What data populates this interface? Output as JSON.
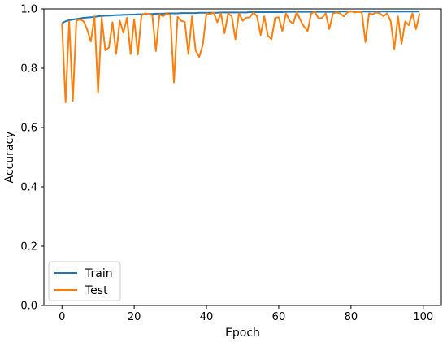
{
  "chart_data": {
    "type": "line",
    "title": "",
    "xlabel": "Epoch",
    "ylabel": "Accuracy",
    "xlim": [
      -5,
      105
    ],
    "ylim": [
      0.0,
      1.0
    ],
    "xticks": [
      0,
      20,
      40,
      60,
      80,
      100
    ],
    "xtick_labels": [
      "0",
      "20",
      "40",
      "60",
      "80",
      "100"
    ],
    "yticks": [
      0.0,
      0.2,
      0.4,
      0.6,
      0.8,
      1.0
    ],
    "ytick_labels": [
      "0.0",
      "0.2",
      "0.4",
      "0.6",
      "0.8",
      "1.0"
    ],
    "grid": false,
    "legend_position": "lower-left",
    "series": [
      {
        "name": "Train",
        "color": "#1f77b4",
        "x": [
          0,
          1,
          2,
          3,
          4,
          5,
          6,
          7,
          8,
          9,
          10,
          11,
          12,
          13,
          14,
          15,
          16,
          17,
          18,
          19,
          20,
          21,
          22,
          23,
          24,
          25,
          26,
          27,
          28,
          29,
          30,
          31,
          32,
          33,
          34,
          35,
          36,
          37,
          38,
          39,
          40,
          41,
          42,
          43,
          44,
          45,
          46,
          47,
          48,
          49,
          50,
          51,
          52,
          53,
          54,
          55,
          56,
          57,
          58,
          59,
          60,
          61,
          62,
          63,
          64,
          65,
          66,
          67,
          68,
          69,
          70,
          71,
          72,
          73,
          74,
          75,
          76,
          77,
          78,
          79,
          80,
          81,
          82,
          83,
          84,
          85,
          86,
          87,
          88,
          89,
          90,
          91,
          92,
          93,
          94,
          95,
          96,
          97,
          98,
          99
        ],
        "values": [
          0.952,
          0.958,
          0.962,
          0.964,
          0.966,
          0.968,
          0.97,
          0.971,
          0.972,
          0.973,
          0.975,
          0.976,
          0.977,
          0.977,
          0.978,
          0.979,
          0.979,
          0.98,
          0.98,
          0.981,
          0.981,
          0.982,
          0.982,
          0.983,
          0.983,
          0.983,
          0.984,
          0.984,
          0.984,
          0.985,
          0.985,
          0.985,
          0.985,
          0.986,
          0.986,
          0.986,
          0.986,
          0.986,
          0.987,
          0.987,
          0.987,
          0.987,
          0.987,
          0.987,
          0.988,
          0.988,
          0.988,
          0.988,
          0.988,
          0.988,
          0.988,
          0.988,
          0.989,
          0.989,
          0.989,
          0.989,
          0.989,
          0.989,
          0.989,
          0.989,
          0.989,
          0.989,
          0.99,
          0.99,
          0.99,
          0.99,
          0.99,
          0.99,
          0.99,
          0.99,
          0.99,
          0.99,
          0.99,
          0.99,
          0.99,
          0.99,
          0.991,
          0.991,
          0.991,
          0.991,
          0.991,
          0.991,
          0.991,
          0.991,
          0.991,
          0.991,
          0.991,
          0.991,
          0.991,
          0.991,
          0.991,
          0.991,
          0.991,
          0.991,
          0.991,
          0.991,
          0.991,
          0.991,
          0.991,
          0.991
        ]
      },
      {
        "name": "Test",
        "color": "#ff7f0e",
        "x": [
          0,
          1,
          2,
          3,
          4,
          5,
          6,
          7,
          8,
          9,
          10,
          11,
          12,
          13,
          14,
          15,
          16,
          17,
          18,
          19,
          20,
          21,
          22,
          23,
          24,
          25,
          26,
          27,
          28,
          29,
          30,
          31,
          32,
          33,
          34,
          35,
          36,
          37,
          38,
          39,
          40,
          41,
          42,
          43,
          44,
          45,
          46,
          47,
          48,
          49,
          50,
          51,
          52,
          53,
          54,
          55,
          56,
          57,
          58,
          59,
          60,
          61,
          62,
          63,
          64,
          65,
          66,
          67,
          68,
          69,
          70,
          71,
          72,
          73,
          74,
          75,
          76,
          77,
          78,
          79,
          80,
          81,
          82,
          83,
          84,
          85,
          86,
          87,
          88,
          89,
          90,
          91,
          92,
          93,
          94,
          95,
          96,
          97,
          98,
          99
        ],
        "values": [
          0.952,
          0.685,
          0.958,
          0.69,
          0.96,
          0.965,
          0.958,
          0.93,
          0.89,
          0.975,
          0.718,
          0.97,
          0.86,
          0.87,
          0.955,
          0.848,
          0.96,
          0.92,
          0.97,
          0.848,
          0.965,
          0.846,
          0.978,
          0.985,
          0.982,
          0.979,
          0.858,
          0.982,
          0.975,
          0.984,
          0.98,
          0.752,
          0.973,
          0.96,
          0.956,
          0.848,
          0.975,
          0.86,
          0.838,
          0.88,
          0.985,
          0.982,
          0.988,
          0.955,
          0.985,
          0.918,
          0.985,
          0.975,
          0.898,
          0.985,
          0.96,
          0.97,
          0.972,
          0.988,
          0.975,
          0.912,
          0.975,
          0.91,
          0.898,
          0.97,
          0.972,
          0.925,
          0.985,
          0.96,
          0.95,
          0.99,
          0.962,
          0.94,
          0.925,
          0.985,
          0.99,
          0.968,
          0.97,
          0.985,
          0.932,
          0.985,
          0.988,
          0.985,
          0.975,
          0.988,
          0.992,
          0.988,
          0.99,
          0.988,
          0.888,
          0.985,
          0.982,
          0.988,
          0.985,
          0.975,
          0.985,
          0.958,
          0.865,
          0.975,
          0.882,
          0.958,
          0.945,
          0.985,
          0.932,
          0.985
        ]
      }
    ]
  }
}
